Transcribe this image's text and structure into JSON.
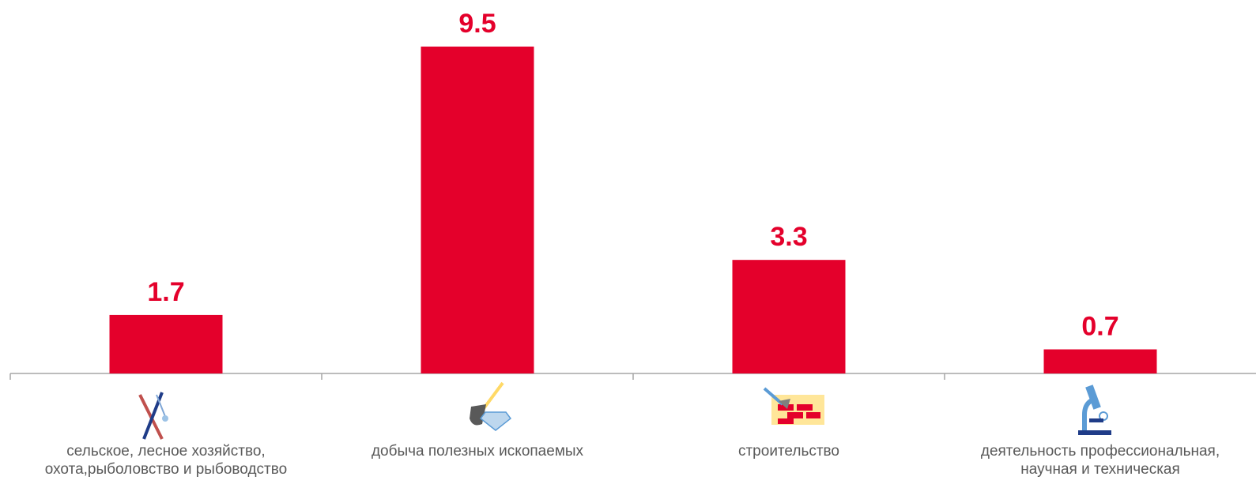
{
  "chart_data": {
    "type": "bar",
    "categories": [
      "сельское, лесное хозяйство, охота,рыболовство и рыбоводство",
      "добыча полезных ископаемых",
      "строительство",
      "деятельность профессиональная, научная и техническая"
    ],
    "values": [
      1.7,
      9.5,
      3.3,
      0.7
    ],
    "color": "#e4002b"
  }
}
